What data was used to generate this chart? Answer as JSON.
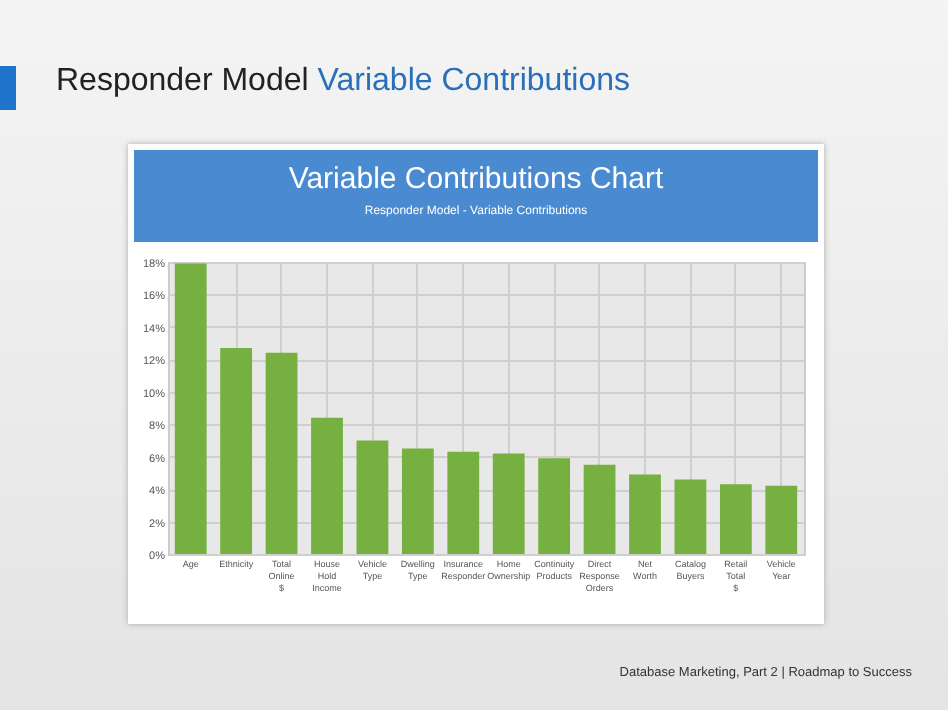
{
  "chart_data": {
    "type": "bar",
    "title": "Variable Contributions Chart",
    "subtitle": "Responder Model - Variable Contributions",
    "annotations": [
      "Responder Model Variable Contributions",
      "Database Marketing, Part 2 | Roadmap to Success"
    ],
    "categories": [
      "Age",
      "Ethnicity",
      "Total Online $",
      "House Hold Income",
      "Vehicle Type",
      "Dwelling Type",
      "Insurance Responder",
      "Home Ownership",
      "Continuity Products",
      "Direct Response Orders",
      "Net Worth",
      "Catalog Buyers",
      "Retail Total $",
      "Vehicle Year"
    ],
    "values": [
      17.9,
      12.7,
      12.4,
      8.4,
      7.0,
      6.5,
      6.3,
      6.2,
      5.9,
      5.5,
      4.9,
      4.6,
      4.3,
      4.2
    ],
    "color": "#76b041",
    "ylim": [
      0,
      18
    ],
    "yticks": [
      {
        "value": 0,
        "label": "0%"
      },
      {
        "value": 2,
        "label": "2%"
      },
      {
        "value": 4,
        "label": "4%"
      },
      {
        "value": 6,
        "label": "6%"
      },
      {
        "value": 8,
        "label": "8%"
      },
      {
        "value": 10,
        "label": "10%"
      },
      {
        "value": 12,
        "label": "12%"
      },
      {
        "value": 14,
        "label": "14%"
      },
      {
        "value": 16,
        "label": "16%"
      },
      {
        "value": 18,
        "label": "18%"
      }
    ],
    "grid": true
  }
}
